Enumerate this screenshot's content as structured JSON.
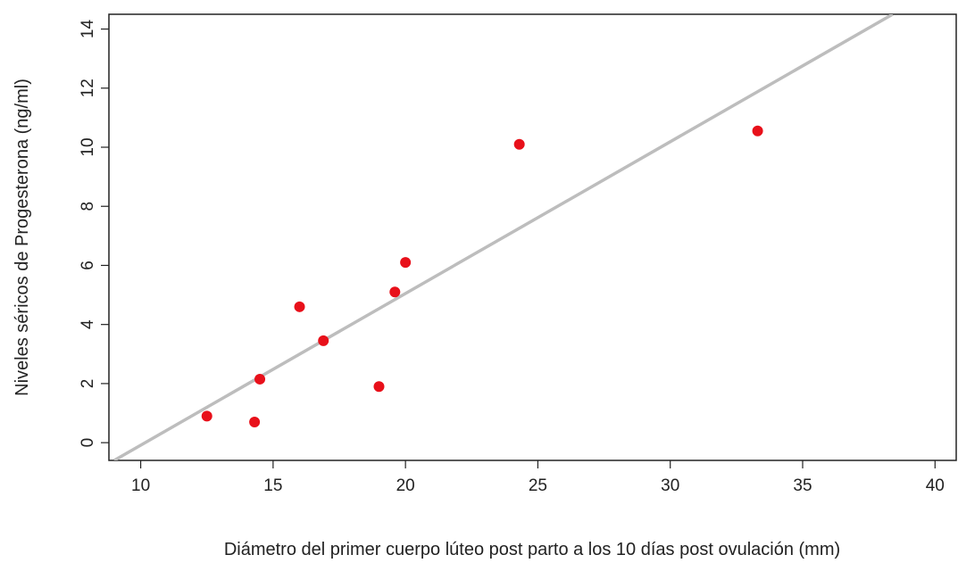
{
  "chart_data": {
    "type": "scatter",
    "title": "",
    "xlabel": "Diámetro del primer cuerpo lúteo post parto a los 10 días post ovulación (mm)",
    "ylabel": "Niveles séricos de Progesterona (ng/ml)",
    "xlim": [
      8.8,
      40.8
    ],
    "ylim": [
      -0.6,
      14.5
    ],
    "xticks": [
      10,
      15,
      20,
      25,
      30,
      35,
      40
    ],
    "yticks": [
      0,
      2,
      4,
      6,
      8,
      10,
      12,
      14
    ],
    "grid": false,
    "legend": "none",
    "point_color": "#e8101a",
    "line_color": "#bdbdbd",
    "series": [
      {
        "points": [
          {
            "x": 12.5,
            "y": 0.9
          },
          {
            "x": 14.3,
            "y": 0.7
          },
          {
            "x": 14.5,
            "y": 2.15
          },
          {
            "x": 16.0,
            "y": 4.6
          },
          {
            "x": 16.9,
            "y": 3.45
          },
          {
            "x": 19.0,
            "y": 1.9
          },
          {
            "x": 19.6,
            "y": 5.1
          },
          {
            "x": 20.0,
            "y": 6.1
          },
          {
            "x": 24.3,
            "y": 10.1
          },
          {
            "x": 33.3,
            "y": 10.55
          }
        ]
      }
    ],
    "fit_line": {
      "x": [
        9.0,
        38.4
      ],
      "y": [
        -0.6,
        14.5
      ]
    }
  }
}
